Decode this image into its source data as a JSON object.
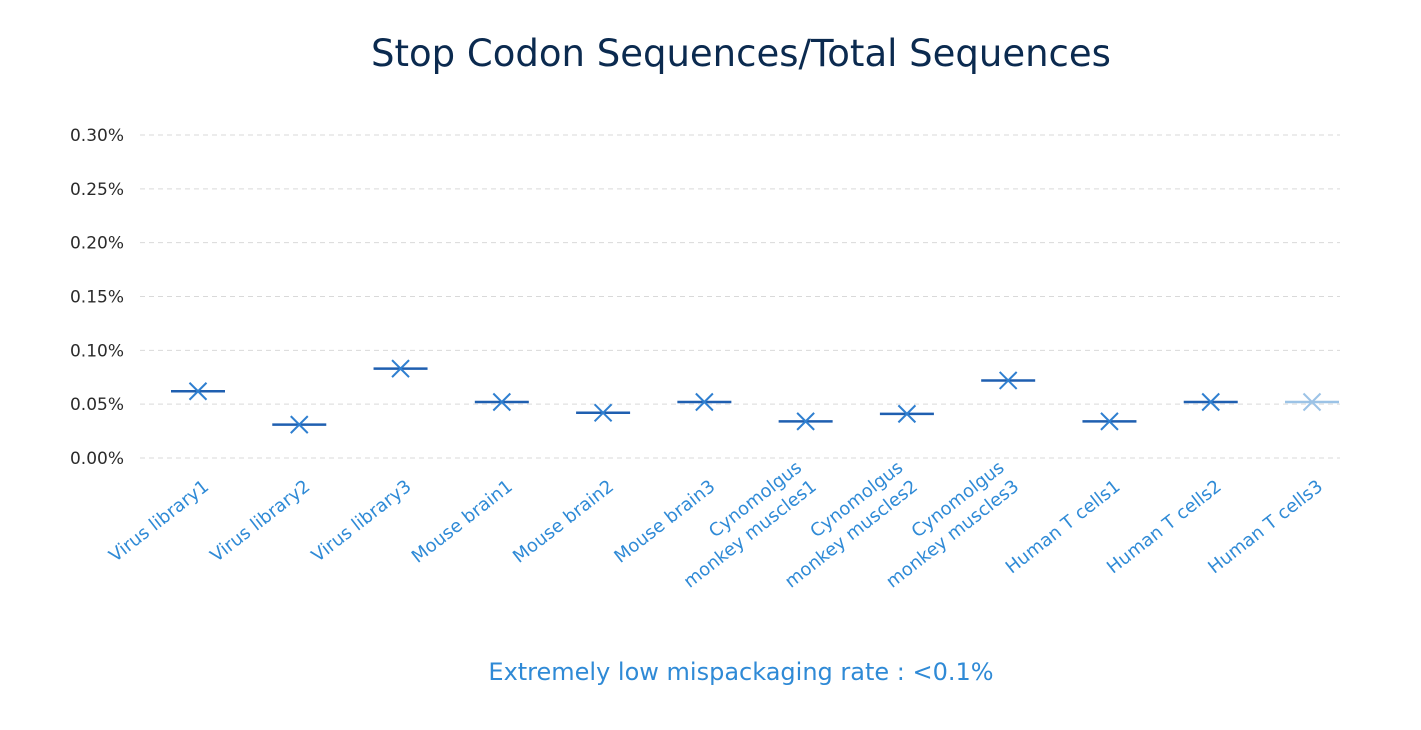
{
  "chart_data": {
    "type": "scatter",
    "title": "Stop Codon Sequences/Total Sequences",
    "caption": "Extremely low mispackaging rate : <0.1%",
    "categories": [
      [
        "Virus library1"
      ],
      [
        "Virus library2"
      ],
      [
        "Virus library3"
      ],
      [
        "Mouse brain1"
      ],
      [
        "Mouse brain2"
      ],
      [
        "Mouse brain3"
      ],
      [
        "Cynomolgus",
        "monkey  muscles1"
      ],
      [
        "Cynomolgus",
        "monkey muscles2"
      ],
      [
        "Cynomolgus",
        "monkey muscles3"
      ],
      [
        "Human T cells1"
      ],
      [
        "Human T cells2"
      ],
      [
        "Human T cells3"
      ]
    ],
    "values": [
      0.062,
      0.031,
      0.083,
      0.052,
      0.042,
      0.052,
      0.034,
      0.041,
      0.072,
      0.034,
      0.052,
      0.052
    ],
    "yticks": [
      "0.00%",
      "0.05%",
      "0.10%",
      "0.15%",
      "0.20%",
      "0.25%",
      "0.30%"
    ],
    "ylim": [
      0,
      0.3
    ],
    "grid": true,
    "marker": "x-with-dash",
    "colors": {
      "marker": "#2f7fd0",
      "marker_dark": "#1f5fb0",
      "marker_last": "#9cc3e6",
      "title": "#0b2a4f",
      "labels": "#2f8ad6",
      "grid": "#d9d9d9"
    }
  }
}
